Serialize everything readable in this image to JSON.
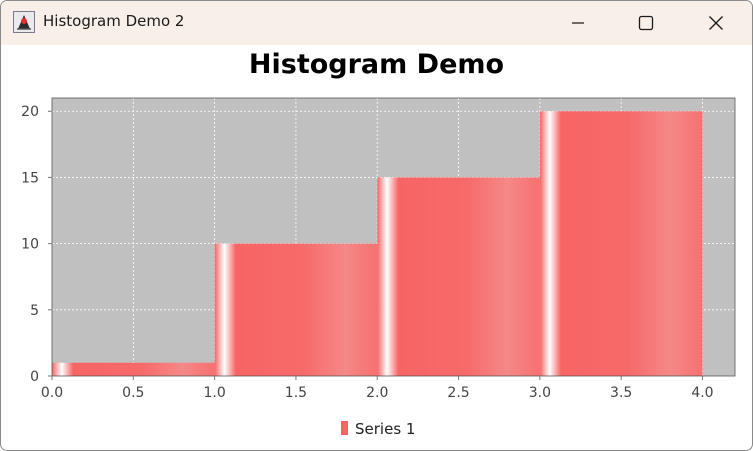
{
  "window": {
    "title": "Histogram Demo 2",
    "app_icon": "java-duke-icon",
    "controls": [
      "minimize-icon",
      "maximize-icon",
      "close-icon"
    ]
  },
  "chart_data": {
    "type": "bar",
    "title": "Histogram Demo",
    "xlabel": "",
    "ylabel": "",
    "x_ticks": [
      "0.0",
      "0.5",
      "1.0",
      "1.5",
      "2.0",
      "2.5",
      "3.0",
      "3.5",
      "4.0"
    ],
    "y_ticks": [
      "0",
      "5",
      "10",
      "15",
      "20"
    ],
    "xlim": [
      0,
      4.2
    ],
    "ylim": [
      0,
      21
    ],
    "bins": [
      {
        "start": 0,
        "end": 1,
        "value": 1
      },
      {
        "start": 1,
        "end": 2,
        "value": 10
      },
      {
        "start": 2,
        "end": 3,
        "value": 15
      },
      {
        "start": 3,
        "end": 4,
        "value": 20
      }
    ],
    "series": [
      {
        "name": "Series 1",
        "color": "#f76464"
      }
    ],
    "plot_background": "#c0c0c0",
    "grid": true,
    "legend": "bottom"
  }
}
